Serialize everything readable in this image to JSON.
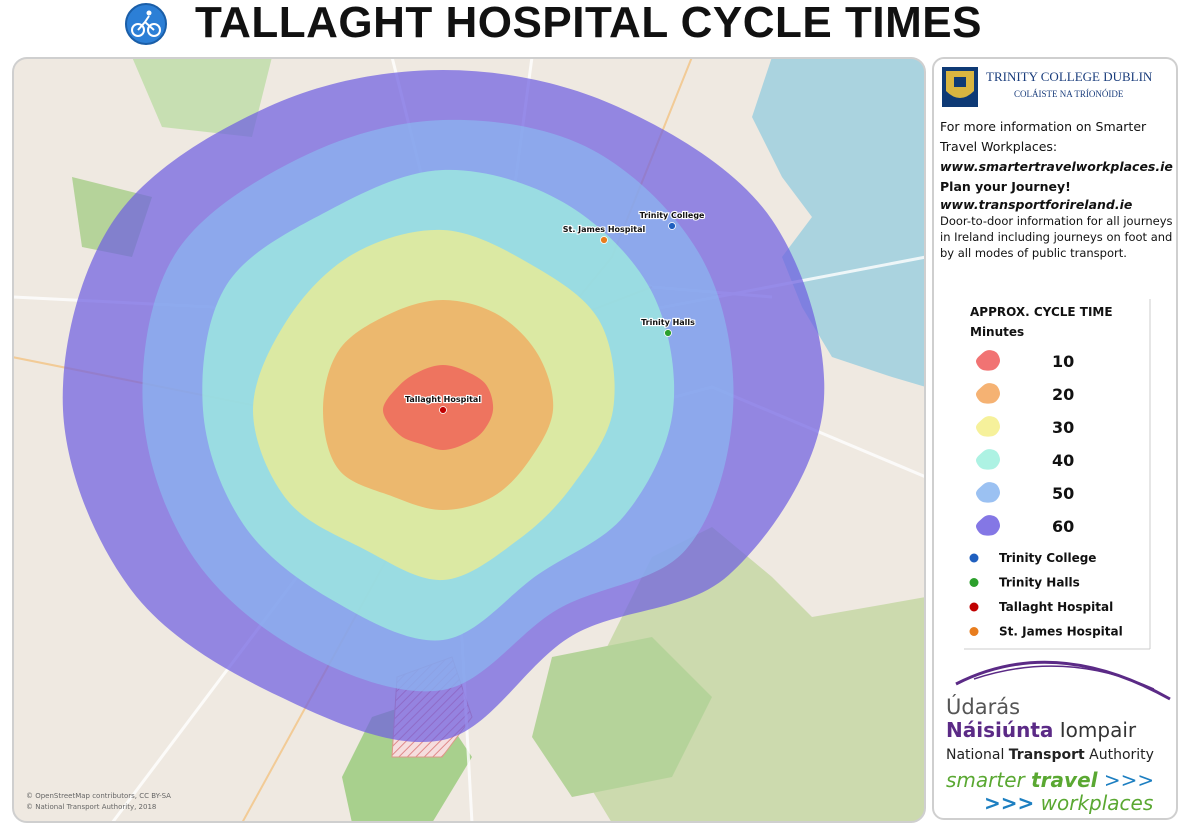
{
  "title": "TALLAGHT HOSPITAL CYCLE TIMES",
  "map": {
    "places": [
      {
        "label": "Trinity College",
        "color": "#1f5fbf"
      },
      {
        "label": "Trinity Halls",
        "color": "#2ca02c"
      },
      {
        "label": "Tallaght Hospital",
        "color": "#c00000"
      },
      {
        "label": "St. James Hospital",
        "color": "#e87d1e"
      }
    ],
    "attribution": [
      "© OpenStreetMap contributors, CC BY-SA",
      "© National Transport Authority, 2018"
    ]
  },
  "sidebar": {
    "institution": "TRINITY COLLEGE DUBLIN",
    "institution_irish": "COLÁISTE NA TRÍONÓIDE",
    "info": [
      "For more information on Smarter Travel Workplaces:",
      "www.smartertravelworkplaces.ie",
      "Plan your Journey!",
      "www.transportforireland.ie",
      "Door-to-door information for all journeys in Ireland including journeys on foot and by all modes of public transport."
    ],
    "legend": {
      "title": "APPROX. CYCLE TIME",
      "unit": "Minutes",
      "bands": [
        {
          "minutes": 10,
          "color": "#ef5a5a"
        },
        {
          "minutes": 20,
          "color": "#f3a55a"
        },
        {
          "minutes": 30,
          "color": "#f4ef8a"
        },
        {
          "minutes": 40,
          "color": "#9ff0de"
        },
        {
          "minutes": 50,
          "color": "#8ab6f0"
        },
        {
          "minutes": 60,
          "color": "#6f5fe0"
        }
      ]
    },
    "nta": {
      "line1": "Údarás",
      "line2a": "Náisiúnta",
      "line2b": "Iompair",
      "line3a": "National",
      "line3b": "Transport",
      "line3c": "Authority"
    },
    "smarter": {
      "a": "smarter",
      "b": "travel",
      "arrows": ">>>",
      "c": "workplaces"
    }
  }
}
